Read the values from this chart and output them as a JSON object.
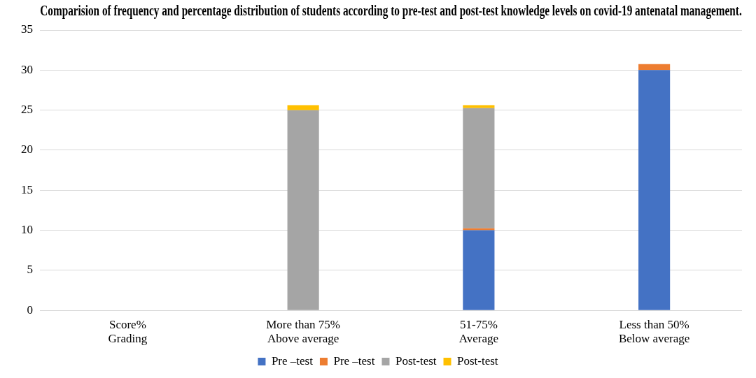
{
  "chart_data": {
    "type": "bar",
    "stacked": true,
    "title": "Comparision of frequency and percentage distribution of students according to pre-test and post-test knowledge levels on covid-19 antenatal management.",
    "categories": [
      "Score%\nGrading",
      "More than 75%\nAbove average",
      "51-75%\nAverage",
      "Less than 50%\nBelow average"
    ],
    "series": [
      {
        "name": "Pre –test",
        "color": "#4472c4",
        "values": [
          0,
          0,
          10,
          30
        ]
      },
      {
        "name": "Pre –test",
        "color": "#ed7d31",
        "values": [
          0,
          0,
          0.25,
          0.75
        ]
      },
      {
        "name": "Post-test",
        "color": "#a5a5a5",
        "values": [
          0,
          25,
          15,
          0
        ]
      },
      {
        "name": "Post-test",
        "color": "#ffc000",
        "values": [
          0,
          0.625,
          0.375,
          0
        ]
      }
    ],
    "ylim": [
      0,
      35
    ],
    "yticks": [
      0,
      5,
      10,
      15,
      20,
      25,
      30,
      35
    ],
    "grid": "y",
    "legend": "bottom"
  }
}
